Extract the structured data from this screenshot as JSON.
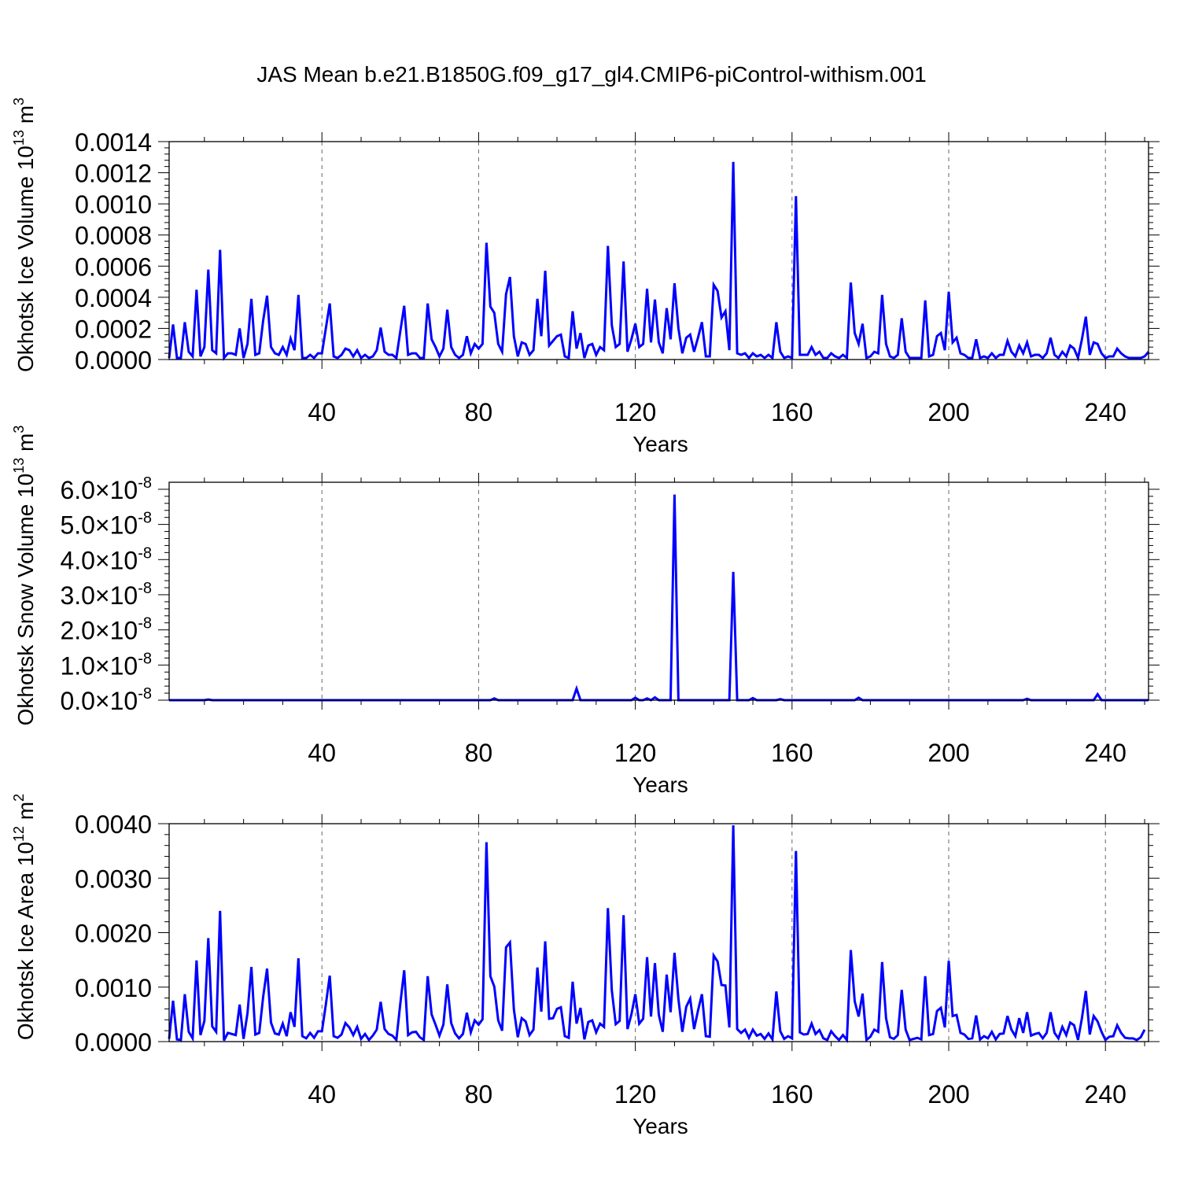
{
  "title": "JAS Mean b.e21.B1850G.f09_g17_gl4.CMIP6-piControl-withism.001",
  "line_color": "#0000ff",
  "chart_data": [
    {
      "type": "line",
      "ylabel": "Okhotsk Ice Volume 10",
      "ylabel_exponent": "13",
      "ylabel_unit": "m",
      "ylabel_unit_exponent": "3",
      "xlabel": "Years",
      "xlim": [
        1,
        251
      ],
      "ylim": [
        0,
        0.0014
      ],
      "x_ticks": [
        40,
        80,
        120,
        160,
        200,
        240
      ],
      "x_tick_labels": [
        "40",
        "80",
        "120",
        "160",
        "200",
        "240"
      ],
      "y_ticks": [
        0,
        0.0002,
        0.0004,
        0.0006,
        0.0008,
        0.001,
        0.0012,
        0.0014
      ],
      "y_tick_labels": [
        "0.0000",
        "0.0002",
        "0.0004",
        "0.0006",
        "0.0008",
        "0.0010",
        "0.0012",
        "0.0014"
      ],
      "grid": "vertical-dashed",
      "x_start": 1,
      "values": [
        1e-05,
        0.000225,
        1e-05,
        1e-05,
        0.00024,
        5e-05,
        2e-05,
        0.000448,
        2e-05,
        8e-05,
        0.000578,
        6e-05,
        4e-05,
        0.000705,
        1e-05,
        4e-05,
        4e-05,
        3e-05,
        0.0002,
        1e-05,
        0.0001,
        0.00039,
        3e-05,
        4e-05,
        0.00025,
        0.00041,
        8e-05,
        4e-05,
        3e-05,
        8e-05,
        3e-05,
        0.000135,
        6e-05,
        0.000415,
        1e-05,
        1e-05,
        3e-05,
        1e-05,
        4e-05,
        4e-05,
        0.0002,
        0.00036,
        2e-05,
        1e-05,
        3e-05,
        7e-05,
        6e-05,
        2e-05,
        6e-05,
        1e-05,
        3e-05,
        1e-05,
        2e-05,
        6e-05,
        0.000205,
        5e-05,
        3e-05,
        3e-05,
        1e-05,
        0.00018,
        0.000345,
        3e-05,
        4e-05,
        4e-05,
        1e-05,
        1e-05,
        0.00036,
        0.00013,
        8e-05,
        2e-05,
        7e-05,
        0.00032,
        8e-05,
        3e-05,
        1e-05,
        3e-05,
        0.00015,
        4e-05,
        0.0001,
        7e-05,
        0.0001,
        0.00075,
        0.00034,
        0.0003,
        0.0001,
        5e-05,
        0.00042,
        0.00053,
        0.00015,
        2e-05,
        0.00011,
        0.0001,
        3e-05,
        6e-05,
        0.00039,
        0.00015,
        0.00057,
        9e-05,
        0.00012,
        0.00015,
        0.00016,
        2e-05,
        1e-05,
        0.00031,
        7e-05,
        0.00017,
        1e-05,
        9e-05,
        0.0001,
        3e-05,
        8e-05,
        6e-05,
        0.00073,
        0.00022,
        8e-05,
        0.0001,
        0.00063,
        5e-05,
        0.00013,
        0.00023,
        8e-05,
        0.0001,
        0.000455,
        0.00011,
        0.000385,
        0.00011,
        4e-05,
        0.00033,
        0.00013,
        0.00049,
        0.0002,
        4e-05,
        0.00014,
        0.00016,
        5e-05,
        0.00014,
        0.00024,
        2e-05,
        2e-05,
        0.00048,
        0.00044,
        0.00027,
        0.00031,
        6e-05,
        0.00127,
        4e-05,
        3e-05,
        4e-05,
        1e-05,
        4e-05,
        2e-05,
        3e-05,
        1e-05,
        3e-05,
        1e-05,
        0.00024,
        5e-05,
        1e-05,
        2e-05,
        1e-05,
        0.00105,
        3e-05,
        3e-05,
        3e-05,
        8e-05,
        3e-05,
        5e-05,
        1e-05,
        1e-05,
        4e-05,
        2e-05,
        1e-05,
        3e-05,
        1e-05,
        0.000495,
        0.00017,
        0.0001,
        0.00023,
        1e-05,
        2e-05,
        5e-05,
        4e-05,
        0.000415,
        0.0001,
        2e-05,
        1e-05,
        3e-05,
        0.000265,
        5e-05,
        1e-05,
        1e-05,
        1e-05,
        1e-05,
        0.00038,
        2e-05,
        3e-05,
        0.00015,
        0.00017,
        6e-05,
        0.000435,
        0.00011,
        0.00014,
        4e-05,
        3e-05,
        1e-05,
        1e-05,
        0.00013,
        1e-05,
        2e-05,
        1e-05,
        4e-05,
        1e-05,
        3e-05,
        3e-05,
        0.00012,
        5e-05,
        2e-05,
        9e-05,
        4e-05,
        0.00011,
        2e-05,
        3e-05,
        3e-05,
        1e-05,
        4e-05,
        0.00014,
        3e-05,
        1e-05,
        5e-05,
        2e-05,
        9e-05,
        7e-05,
        1e-05,
        0.00013,
        0.000275,
        3e-05,
        0.00011,
        0.0001,
        4e-05,
        1e-05,
        2e-05,
        2e-05,
        7e-05,
        4e-05,
        2e-05,
        1e-05,
        1e-05,
        1e-05,
        1e-05,
        2e-05,
        5e-05
      ]
    },
    {
      "type": "line",
      "ylabel": "Okhotsk Snow Volume 10",
      "ylabel_exponent": "13",
      "ylabel_unit": "m",
      "ylabel_unit_exponent": "3",
      "xlabel": "Years",
      "xlim": [
        1,
        251
      ],
      "ylim": [
        0,
        6.2e-08
      ],
      "x_ticks": [
        40,
        80,
        120,
        160,
        200,
        240
      ],
      "x_tick_labels": [
        "40",
        "80",
        "120",
        "160",
        "200",
        "240"
      ],
      "y_ticks": [
        0,
        1e-08,
        2e-08,
        3e-08,
        4e-08,
        5e-08,
        6e-08
      ],
      "y_tick_labels": [
        "0.0",
        "1.0",
        "2.0",
        "3.0",
        "4.0",
        "5.0",
        "6.0"
      ],
      "y_tick_suffix": "×10",
      "y_tick_exponent": "-8",
      "grid": "vertical-dashed",
      "x_start": 1,
      "spikes": [
        {
          "x": 11,
          "y": 2e-10
        },
        {
          "x": 84,
          "y": 5e-10
        },
        {
          "x": 105,
          "y": 3.3e-09
        },
        {
          "x": 120,
          "y": 7e-10
        },
        {
          "x": 123,
          "y": 5e-10
        },
        {
          "x": 125,
          "y": 8e-10
        },
        {
          "x": 130,
          "y": 5.85e-08
        },
        {
          "x": 145,
          "y": 3.65e-08
        },
        {
          "x": 150,
          "y": 6e-10
        },
        {
          "x": 157,
          "y": 3e-10
        },
        {
          "x": 177,
          "y": 7e-10
        },
        {
          "x": 220,
          "y": 4e-10
        },
        {
          "x": 238,
          "y": 1.7e-09
        }
      ]
    },
    {
      "type": "line",
      "ylabel": "Okhotsk Ice Area 10",
      "ylabel_exponent": "12",
      "ylabel_unit": "m",
      "ylabel_unit_exponent": "2",
      "xlabel": "Years",
      "xlim": [
        1,
        251
      ],
      "ylim": [
        0,
        0.004
      ],
      "x_ticks": [
        40,
        80,
        120,
        160,
        200,
        240
      ],
      "x_tick_labels": [
        "40",
        "80",
        "120",
        "160",
        "200",
        "240"
      ],
      "y_ticks": [
        0,
        0.001,
        0.002,
        0.003,
        0.004
      ],
      "y_tick_labels": [
        "0.0000",
        "0.0010",
        "0.0020",
        "0.0030",
        "0.0040"
      ],
      "grid": "vertical-dashed",
      "x_start": 1,
      "values": [
        5e-05,
        0.00075,
        4e-05,
        3e-05,
        0.00087,
        0.00018,
        6e-05,
        0.00149,
        0.00012,
        0.00038,
        0.0019,
        0.00028,
        0.00018,
        0.0024,
        2e-05,
        0.00016,
        0.00014,
        0.00012,
        0.00068,
        5e-05,
        0.00052,
        0.00137,
        0.00013,
        0.00016,
        0.00082,
        0.00134,
        0.00035,
        0.00015,
        0.00013,
        0.00033,
        0.0001,
        0.00054,
        0.00027,
        0.00153,
        0.0001,
        6e-05,
        0.00016,
        7e-05,
        0.00019,
        0.00019,
        0.00068,
        0.00121,
        0.0001,
        7e-05,
        0.00013,
        0.00034,
        0.00026,
        0.00012,
        0.00027,
        5e-05,
        0.00014,
        3e-05,
        0.00011,
        0.00022,
        0.00073,
        0.00023,
        0.00014,
        0.00011,
        3e-05,
        0.00069,
        0.00131,
        0.00012,
        0.00017,
        0.00018,
        8e-05,
        3e-05,
        0.0012,
        0.0005,
        0.00031,
        0.00011,
        0.00031,
        0.00105,
        0.00034,
        0.00015,
        6e-05,
        0.00014,
        0.00053,
        0.00017,
        0.00039,
        0.00031,
        0.00041,
        0.00366,
        0.0012,
        0.00101,
        0.00039,
        0.0002,
        0.00173,
        0.00182,
        0.00059,
        8e-05,
        0.00043,
        0.00037,
        0.00012,
        0.00022,
        0.00136,
        0.00055,
        0.00184,
        0.00042,
        0.00043,
        0.0006,
        0.00063,
        0.0001,
        7e-05,
        0.0011,
        0.00033,
        0.00062,
        4e-05,
        0.00036,
        0.00039,
        0.00017,
        0.00033,
        0.00027,
        0.00245,
        0.00094,
        0.00032,
        0.00038,
        0.00232,
        0.00023,
        0.0005,
        0.00087,
        0.00033,
        0.00042,
        0.00155,
        0.00046,
        0.00144,
        0.00049,
        0.00018,
        0.00123,
        0.00054,
        0.00163,
        0.00078,
        0.00018,
        0.00064,
        0.00079,
        0.00023,
        0.00057,
        0.00087,
        0.0001,
        9e-05,
        0.00158,
        0.00147,
        0.00104,
        0.00103,
        0.00026,
        0.00397,
        0.00023,
        0.00016,
        0.00022,
        7e-05,
        0.00022,
        0.00011,
        0.00014,
        5e-05,
        0.00015,
        4e-05,
        0.00092,
        0.00019,
        5e-05,
        0.0001,
        6e-05,
        0.0035,
        0.00017,
        0.00013,
        0.00014,
        0.00033,
        0.00014,
        0.00021,
        6e-05,
        3e-05,
        0.00019,
        0.0001,
        3e-05,
        0.00012,
        3e-05,
        0.00168,
        0.00074,
        0.00046,
        0.00088,
        3e-05,
        9e-05,
        0.00022,
        0.00018,
        0.00146,
        0.00043,
        8e-05,
        5e-05,
        0.00012,
        0.00095,
        0.00022,
        3e-05,
        5e-05,
        7e-05,
        4e-05,
        0.0012,
        0.00012,
        0.00014,
        0.00056,
        0.00062,
        0.00026,
        0.00148,
        0.00047,
        0.00049,
        0.00016,
        0.00013,
        5e-05,
        6e-05,
        0.00048,
        4e-05,
        0.0001,
        6e-05,
        0.00018,
        4e-05,
        0.00014,
        0.00015,
        0.00047,
        0.00022,
        0.0001,
        0.00043,
        0.00016,
        0.00054,
        0.00011,
        0.00014,
        0.00016,
        6e-05,
        0.00016,
        0.00054,
        0.00016,
        6e-05,
        0.00027,
        0.00012,
        0.00035,
        0.0003,
        3e-05,
        0.00043,
        0.00093,
        0.00013,
        0.00047,
        0.00037,
        0.00018,
        3e-05,
        9e-05,
        0.0001,
        0.0003,
        0.00016,
        7e-05,
        6e-05,
        6e-05,
        3e-05,
        8e-05,
        0.00022
      ]
    }
  ]
}
